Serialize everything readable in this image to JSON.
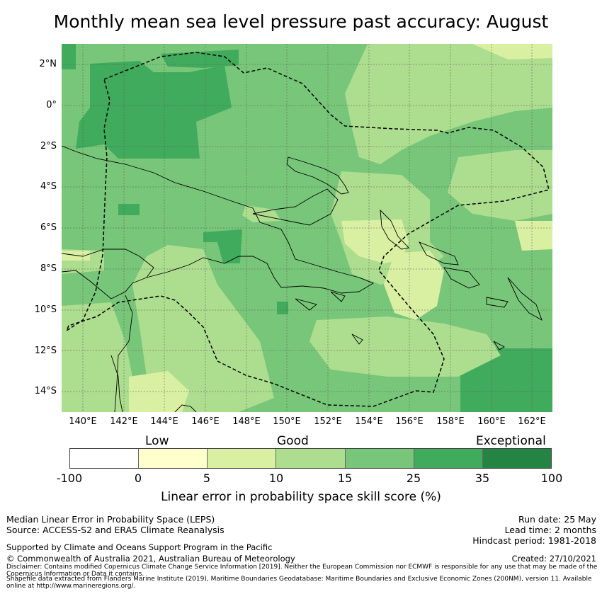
{
  "title": "Monthly mean sea level pressure past accuracy: August",
  "map": {
    "lat_labels": [
      "2°N",
      "0°",
      "2°S",
      "4°S",
      "6°S",
      "8°S",
      "10°S",
      "12°S",
      "14°S"
    ],
    "lon_labels": [
      "140°E",
      "142°E",
      "144°E",
      "146°E",
      "148°E",
      "150°E",
      "152°E",
      "154°E",
      "156°E",
      "158°E",
      "160°E",
      "162°E"
    ],
    "lon_range": [
      139.0,
      163.0
    ],
    "lat_range": [
      -15.0,
      3.0
    ],
    "eez_boundary": "dashed",
    "gridlines": true
  },
  "colorbar": {
    "categories": [
      "Low",
      "Good",
      "Exceptional"
    ],
    "ticks": [
      "-100",
      "0",
      "5",
      "10",
      "15",
      "25",
      "35",
      "100"
    ],
    "colors": [
      "#ffffff",
      "#ffffcc",
      "#d9f0a3",
      "#addd8e",
      "#78c679",
      "#41ab5d",
      "#238443"
    ],
    "label": "Linear error in probability space skill score (%)"
  },
  "footer": {
    "left": [
      "Median Linear Error in Probability Space (LEPS)",
      "Source: ACCESS-S2 and ERA5 Climate Reanalysis"
    ],
    "support": "Supported by Climate and Oceans Support Program in the Pacific",
    "copyright": "© Commonwealth of Australia 2021, Australian Bureau of Meteorology",
    "right": [
      "Run date: 25 May",
      "Lead time: 2 months",
      "Hindcast period: 1981-2018"
    ],
    "created": "Created: 27/10/2021",
    "disclaimer": "Disclaimer: Contains modified Copernicus Climate Change Service Information [2019]. Neither the European Commission nor ECMWF is responsible for any use that may be made of the Copernicus Information or Data it contains.",
    "shapefile": "Shapefile data extracted from Flanders Marine Institute (2019), Maritime Boundaries Geodatabase: Maritime Boundaries and Exclusive Economic Zones (200NM), version 11. Available online at http://www.marineregions.org/."
  }
}
